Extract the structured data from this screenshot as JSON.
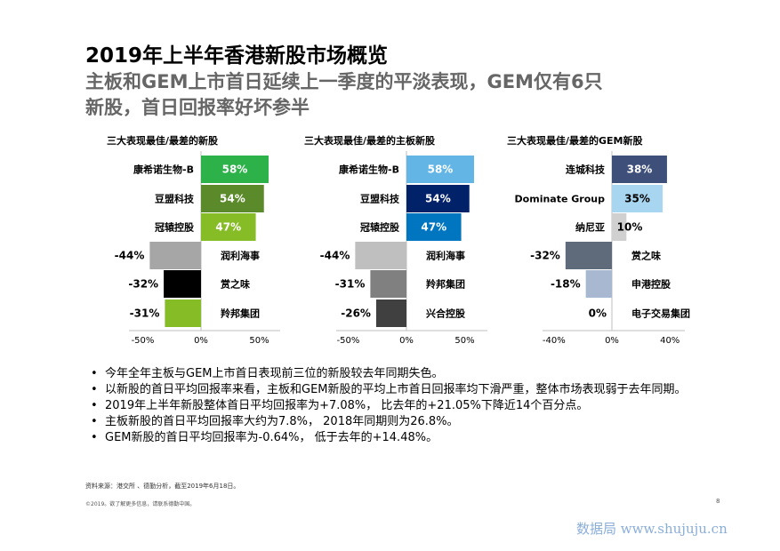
{
  "header": {
    "title_line1": "2019年上半年香港新股市场概览",
    "title_line2": "主板和GEM上市首日延续上一季度的平淡表现，GEM仅有6只",
    "title_line3": "新股，首日回报率好坏参半"
  },
  "chart_data": [
    {
      "type": "bar",
      "orientation": "horizontal",
      "title": "三大表现最佳/最差的新股",
      "categories": [
        "康希诺生物-B",
        "豆盟科技",
        "冠辕控股",
        "润利海事",
        "赏之味",
        "羚邦集团"
      ],
      "values": [
        58,
        54,
        47,
        -44,
        -32,
        -31
      ],
      "data_labels": [
        "58%",
        "54%",
        "47%",
        "-44%",
        "-32%",
        "-31%"
      ],
      "colors": [
        "#2db24a",
        "#5b8a2a",
        "#86bc25",
        "#a6a6a6",
        "#000000",
        "#86bc25"
      ],
      "xlim": [
        -50,
        60
      ],
      "xticks": [
        -50,
        0,
        50
      ],
      "xtick_labels": [
        "-50%",
        "0%",
        "50%"
      ]
    },
    {
      "type": "bar",
      "orientation": "horizontal",
      "title": "三大表现最佳/最差的主板新股",
      "categories": [
        "康希诺生物-B",
        "豆盟科技",
        "冠辕控股",
        "润利海事",
        "羚邦集团",
        "兴合控股"
      ],
      "values": [
        58,
        54,
        47,
        -44,
        -31,
        -26
      ],
      "data_labels": [
        "58%",
        "54%",
        "47%",
        "-44%",
        "-31%",
        "-26%"
      ],
      "colors": [
        "#62b5e5",
        "#012169",
        "#0076c0",
        "#bfbfbf",
        "#808080",
        "#404040"
      ],
      "xlim": [
        -50,
        60
      ],
      "xticks": [
        -50,
        0,
        50
      ],
      "xtick_labels": [
        "-50%",
        "0%",
        "50%"
      ]
    },
    {
      "type": "bar",
      "orientation": "horizontal",
      "title": "三大表现最佳/最差的GEM新股",
      "categories": [
        "连城科技",
        "Dominate Group",
        "纳尼亚",
        "赏之味",
        "申港控股",
        "电子交易集团"
      ],
      "values": [
        38,
        35,
        10,
        -32,
        -18,
        0
      ],
      "data_labels": [
        "38%",
        "35%",
        "10%",
        "-32%",
        "-18%",
        "0%"
      ],
      "colors": [
        "#3e4f7a",
        "#a8d5f0",
        "#d0d0d0",
        "#5f6b7a",
        "#a7b8d0",
        "#cccccc"
      ],
      "xlim": [
        -40,
        45
      ],
      "xticks": [
        -40,
        0,
        40
      ],
      "xtick_labels": [
        "-40%",
        "0%",
        "40%"
      ]
    }
  ],
  "bullets": [
    "今年全年主板与GEM上市首日表现前三位的新股较去年同期失色。",
    "以新股的首日平均回报率来看，主板和GEM新股的平均上市首日回报率均下滑严重，整体市场表现弱于去年同期。",
    "2019年上半年新股整体首日平均回报率为+7.08%， 比去年的+21.05%下降近14个百分点。",
    "主板新股的首日平均回报率大约为7.8%， 2018年同期则为26.8%。",
    "GEM新股的首日平均回报率为-0.64%， 低于去年的+14.48%。"
  ],
  "footer": {
    "source": "资料来源：港交所 、德勤分析，截至2019年6月18日。",
    "copyright": "©2019。欲了解更多信息，请联系德勤中国。",
    "page": "8",
    "watermark": "数据局 www.shujuju.cn"
  }
}
